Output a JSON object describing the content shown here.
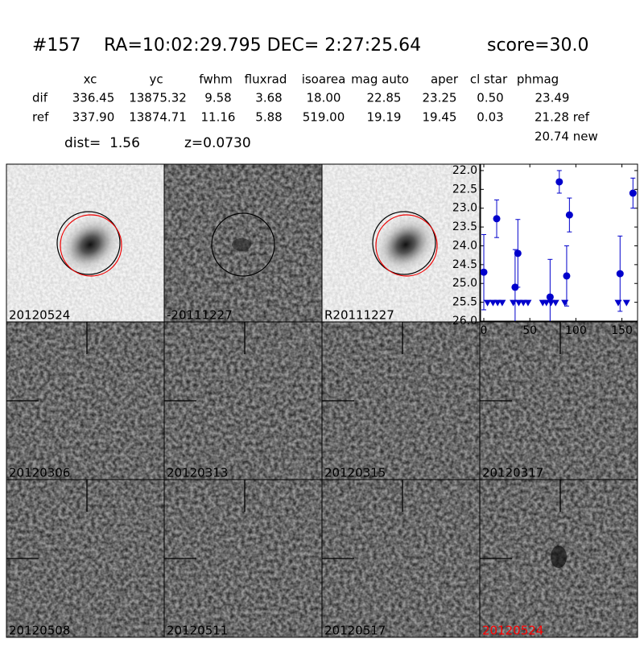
{
  "header": {
    "id": "#157",
    "coords": "RA=10:02:29.795 DEC= 2:27:25.64",
    "score": "score=30.0"
  },
  "table": {
    "columns": [
      "xc",
      "yc",
      "fwhm",
      "fluxrad",
      "isoarea",
      "mag auto",
      "aper",
      "cl star",
      "phmag"
    ],
    "rows": [
      {
        "label": "dif",
        "cells": [
          "336.45",
          "13875.32",
          "9.58",
          "3.68",
          "18.00",
          "22.85",
          "23.25",
          "0.50",
          "23.49"
        ]
      },
      {
        "label": "ref",
        "cells": [
          "337.90",
          "13874.71",
          "11.16",
          "5.88",
          "519.00",
          "19.19",
          "19.45",
          "0.03",
          "21.28 ref"
        ]
      }
    ],
    "note": "20.74 new"
  },
  "dist": "dist=  1.56",
  "redshift": "z=0.0730",
  "panels": [
    {
      "label": "20120524",
      "color": "#000000"
    },
    {
      "label": "-20111227",
      "color": "#000000"
    },
    {
      "label": "R20111227",
      "color": "#000000"
    },
    {
      "label": "20120306",
      "color": "#000000"
    },
    {
      "label": "20120313",
      "color": "#000000"
    },
    {
      "label": "20120315",
      "color": "#000000"
    },
    {
      "label": "20120317",
      "color": "#000000"
    },
    {
      "label": "20120508",
      "color": "#000000"
    },
    {
      "label": "20120511",
      "color": "#000000"
    },
    {
      "label": "20120517",
      "color": "#000000"
    },
    {
      "label": "20120524",
      "color": "#ff0000"
    }
  ],
  "chart_data": {
    "type": "scatter",
    "color": "#0000cc",
    "xlim": [
      -3.5,
      167
    ],
    "xticks": [
      0,
      50,
      100,
      150
    ],
    "ylim": [
      26.0,
      21.83
    ],
    "yticks": [
      {
        "value": 22.0,
        "label": "22.0"
      },
      22.5,
      {
        "value": 23.0,
        "label": "23.0"
      },
      23.5,
      {
        "value": 24.0,
        "label": "24.0"
      },
      24.5,
      {
        "value": 25.0,
        "label": "25.0"
      },
      25.5,
      {
        "value": 26.0,
        "label": "26.0"
      }
    ],
    "detections": {
      "x": [
        0,
        14,
        34,
        37,
        72,
        82,
        90,
        93,
        148,
        162
      ],
      "values": [
        24.7,
        23.28,
        25.1,
        24.2,
        25.36,
        22.3,
        24.8,
        23.18,
        24.74,
        22.6
      ],
      "errors": [
        1.0,
        0.5,
        1.0,
        0.9,
        1.0,
        0.3,
        0.8,
        0.45,
        1.0,
        0.4
      ]
    },
    "limits": {
      "x": [
        4,
        10,
        15,
        20,
        32,
        38,
        43,
        48,
        64,
        68,
        73,
        78,
        88,
        146,
        155
      ],
      "values": [
        25.5,
        25.5,
        25.5,
        25.5,
        25.5,
        25.5,
        25.5,
        25.5,
        25.5,
        25.5,
        25.5,
        25.5,
        25.5,
        25.5,
        25.5
      ]
    }
  }
}
